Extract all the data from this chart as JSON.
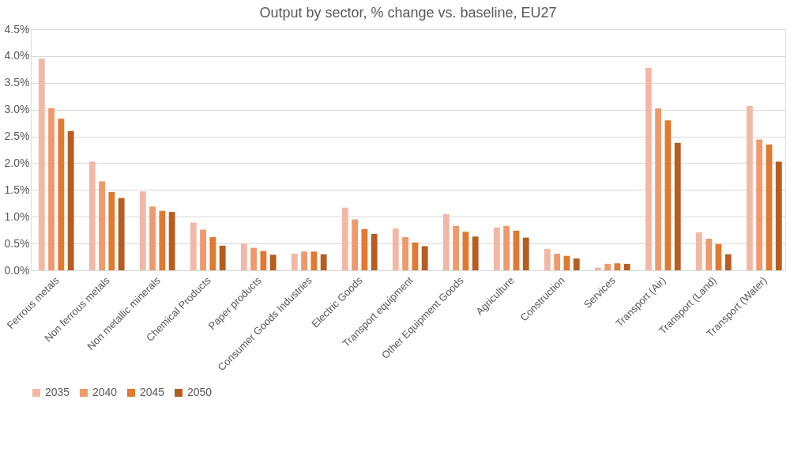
{
  "chart_data": {
    "type": "bar",
    "title": "Output by sector, % change vs. baseline, EU27",
    "categories": [
      "Ferrous metals",
      "Non ferrous metals",
      "Non metallic minerals",
      "Chemical Products",
      "Paper products",
      "Consumer Goods Industries",
      "Electric Goods",
      "Transport equipment",
      "Other Equipment Goods",
      "Agriculture",
      "Construction",
      "Services",
      "Transport (Air)",
      "Transport (Land)",
      "Transport (Water)"
    ],
    "series": [
      {
        "name": "2035",
        "color": "#f2b8a6",
        "values": [
          3.95,
          2.03,
          1.47,
          0.89,
          0.5,
          0.31,
          1.17,
          0.78,
          1.05,
          0.8,
          0.4,
          0.05,
          3.78,
          0.71,
          3.07
        ]
      },
      {
        "name": "2040",
        "color": "#ee9a6c",
        "values": [
          3.03,
          1.66,
          1.19,
          0.76,
          0.42,
          0.35,
          0.95,
          0.62,
          0.83,
          0.83,
          0.31,
          0.12,
          3.02,
          0.59,
          2.44
        ]
      },
      {
        "name": "2045",
        "color": "#e07a30",
        "values": [
          2.83,
          1.46,
          1.11,
          0.62,
          0.36,
          0.35,
          0.77,
          0.52,
          0.72,
          0.74,
          0.27,
          0.13,
          2.8,
          0.49,
          2.35
        ]
      },
      {
        "name": "2050",
        "color": "#b65d22",
        "values": [
          2.6,
          1.35,
          1.09,
          0.46,
          0.29,
          0.3,
          0.68,
          0.45,
          0.63,
          0.61,
          0.22,
          0.12,
          2.38,
          0.3,
          2.03
        ]
      }
    ],
    "ylim": [
      0,
      4.5
    ],
    "yticks": [
      {
        "value": 0,
        "label": "0.0%"
      },
      {
        "value": 0.5,
        "label": "0.5%"
      },
      {
        "value": 1,
        "label": "1.0%"
      },
      {
        "value": 1.5,
        "label": "1.5%"
      },
      {
        "value": 2,
        "label": "2.0%"
      },
      {
        "value": 2.5,
        "label": "2.5%"
      },
      {
        "value": 3,
        "label": "3.0%"
      },
      {
        "value": 3.5,
        "label": "3.5%"
      },
      {
        "value": 4,
        "label": "4.0%"
      },
      {
        "value": 4.5,
        "label": "4.5%"
      }
    ],
    "grid": "y",
    "legend": "bottom"
  }
}
